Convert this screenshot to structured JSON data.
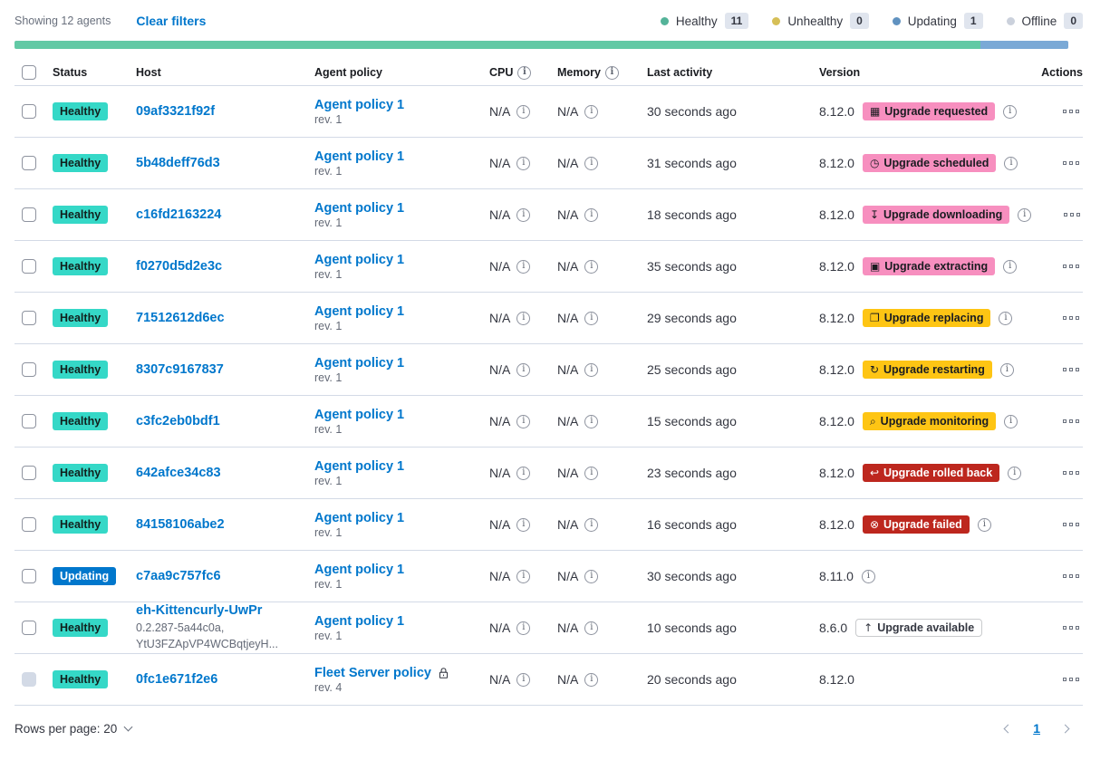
{
  "toolbar": {
    "showing_text": "Showing 12 agents",
    "clear_filters_label": "Clear filters",
    "legend": [
      {
        "label": "Healthy",
        "count": "11",
        "color": "#54B399"
      },
      {
        "label": "Unhealthy",
        "count": "0",
        "color": "#D6BF57"
      },
      {
        "label": "Updating",
        "count": "1",
        "color": "#6092C0"
      },
      {
        "label": "Offline",
        "count": "0",
        "color": "#CBD1DC"
      }
    ]
  },
  "status_bar": {
    "segments": [
      {
        "status": "healthy",
        "fraction": 0.9167,
        "color": "#62C9A5"
      },
      {
        "status": "updating",
        "fraction": 0.0833,
        "color": "#7AA9D6"
      }
    ]
  },
  "table": {
    "columns": [
      {
        "label": "Status"
      },
      {
        "label": "Host"
      },
      {
        "label": "Agent policy"
      },
      {
        "label": "CPU",
        "info": true
      },
      {
        "label": "Memory",
        "info": true
      },
      {
        "label": "Last activity"
      },
      {
        "label": "Version"
      },
      {
        "label": "Actions"
      }
    ]
  },
  "icons": {
    "calendar-icon": "▦",
    "clock-icon": "◷",
    "download-icon": "↧",
    "package-icon": "▣",
    "copy-icon": "❐",
    "refresh-icon": "↻",
    "inspect-icon": "⌕",
    "rollback-icon": "↩",
    "error-icon": "⊗",
    "arrow-up-icon": "↑"
  },
  "rows": [
    {
      "status": {
        "label": "Healthy",
        "variant": "success"
      },
      "host": {
        "name": "09af3321f92f"
      },
      "policy": {
        "name": "Agent policy 1",
        "rev": "rev. 1",
        "locked": false
      },
      "cpu": "N/A",
      "memory": "N/A",
      "last_activity": "30 seconds ago",
      "version": "8.12.0",
      "upgrade": {
        "label": "Upgrade requested",
        "icon": "calendar-icon",
        "variant": "accent"
      },
      "version_info": true,
      "checkbox_disabled": false
    },
    {
      "status": {
        "label": "Healthy",
        "variant": "success"
      },
      "host": {
        "name": "5b48deff76d3"
      },
      "policy": {
        "name": "Agent policy 1",
        "rev": "rev. 1",
        "locked": false
      },
      "cpu": "N/A",
      "memory": "N/A",
      "last_activity": "31 seconds ago",
      "version": "8.12.0",
      "upgrade": {
        "label": "Upgrade scheduled",
        "icon": "clock-icon",
        "variant": "accent"
      },
      "version_info": true,
      "checkbox_disabled": false
    },
    {
      "status": {
        "label": "Healthy",
        "variant": "success"
      },
      "host": {
        "name": "c16fd2163224"
      },
      "policy": {
        "name": "Agent policy 1",
        "rev": "rev. 1",
        "locked": false
      },
      "cpu": "N/A",
      "memory": "N/A",
      "last_activity": "18 seconds ago",
      "version": "8.12.0",
      "upgrade": {
        "label": "Upgrade downloading",
        "icon": "download-icon",
        "variant": "accent"
      },
      "version_info": true,
      "checkbox_disabled": false
    },
    {
      "status": {
        "label": "Healthy",
        "variant": "success"
      },
      "host": {
        "name": "f0270d5d2e3c"
      },
      "policy": {
        "name": "Agent policy 1",
        "rev": "rev. 1",
        "locked": false
      },
      "cpu": "N/A",
      "memory": "N/A",
      "last_activity": "35 seconds ago",
      "version": "8.12.0",
      "upgrade": {
        "label": "Upgrade extracting",
        "icon": "package-icon",
        "variant": "accent"
      },
      "version_info": true,
      "checkbox_disabled": false
    },
    {
      "status": {
        "label": "Healthy",
        "variant": "success"
      },
      "host": {
        "name": "71512612d6ec"
      },
      "policy": {
        "name": "Agent policy 1",
        "rev": "rev. 1",
        "locked": false
      },
      "cpu": "N/A",
      "memory": "N/A",
      "last_activity": "29 seconds ago",
      "version": "8.12.0",
      "upgrade": {
        "label": "Upgrade replacing",
        "icon": "copy-icon",
        "variant": "warning"
      },
      "version_info": true,
      "checkbox_disabled": false
    },
    {
      "status": {
        "label": "Healthy",
        "variant": "success"
      },
      "host": {
        "name": "8307c9167837"
      },
      "policy": {
        "name": "Agent policy 1",
        "rev": "rev. 1",
        "locked": false
      },
      "cpu": "N/A",
      "memory": "N/A",
      "last_activity": "25 seconds ago",
      "version": "8.12.0",
      "upgrade": {
        "label": "Upgrade restarting",
        "icon": "refresh-icon",
        "variant": "warning"
      },
      "version_info": true,
      "checkbox_disabled": false
    },
    {
      "status": {
        "label": "Healthy",
        "variant": "success"
      },
      "host": {
        "name": "c3fc2eb0bdf1"
      },
      "policy": {
        "name": "Agent policy 1",
        "rev": "rev. 1",
        "locked": false
      },
      "cpu": "N/A",
      "memory": "N/A",
      "last_activity": "15 seconds ago",
      "version": "8.12.0",
      "upgrade": {
        "label": "Upgrade monitoring",
        "icon": "inspect-icon",
        "variant": "warning"
      },
      "version_info": true,
      "checkbox_disabled": false
    },
    {
      "status": {
        "label": "Healthy",
        "variant": "success"
      },
      "host": {
        "name": "642afce34c83"
      },
      "policy": {
        "name": "Agent policy 1",
        "rev": "rev. 1",
        "locked": false
      },
      "cpu": "N/A",
      "memory": "N/A",
      "last_activity": "23 seconds ago",
      "version": "8.12.0",
      "upgrade": {
        "label": "Upgrade rolled back",
        "icon": "rollback-icon",
        "variant": "danger"
      },
      "version_info": true,
      "checkbox_disabled": false
    },
    {
      "status": {
        "label": "Healthy",
        "variant": "success"
      },
      "host": {
        "name": "84158106abe2"
      },
      "policy": {
        "name": "Agent policy 1",
        "rev": "rev. 1",
        "locked": false
      },
      "cpu": "N/A",
      "memory": "N/A",
      "last_activity": "16 seconds ago",
      "version": "8.12.0",
      "upgrade": {
        "label": "Upgrade failed",
        "icon": "error-icon",
        "variant": "danger"
      },
      "version_info": true,
      "checkbox_disabled": false
    },
    {
      "status": {
        "label": "Updating",
        "variant": "primary"
      },
      "host": {
        "name": "c7aa9c757fc6"
      },
      "policy": {
        "name": "Agent policy 1",
        "rev": "rev. 1",
        "locked": false
      },
      "cpu": "N/A",
      "memory": "N/A",
      "last_activity": "30 seconds ago",
      "version": "8.11.0",
      "upgrade": null,
      "version_info": true,
      "checkbox_disabled": false
    },
    {
      "status": {
        "label": "Healthy",
        "variant": "success"
      },
      "host": {
        "name": "eh-Kittencurly-UwPr",
        "subtext": [
          "0.2.287-5a44c0a,",
          "YtU3FZApVP4WCBqtjeyH..."
        ]
      },
      "policy": {
        "name": "Agent policy 1",
        "rev": "rev. 1",
        "locked": false
      },
      "cpu": "N/A",
      "memory": "N/A",
      "last_activity": "10 seconds ago",
      "version": "8.6.0",
      "upgrade": {
        "label": "Upgrade available",
        "icon": "arrow-up-icon",
        "variant": "hollow"
      },
      "version_info": false,
      "checkbox_disabled": false
    },
    {
      "status": {
        "label": "Healthy",
        "variant": "success"
      },
      "host": {
        "name": "0fc1e671f2e6"
      },
      "policy": {
        "name": "Fleet Server policy",
        "rev": "rev. 4",
        "locked": true
      },
      "cpu": "N/A",
      "memory": "N/A",
      "last_activity": "20 seconds ago",
      "version": "8.12.0",
      "upgrade": null,
      "version_info": false,
      "checkbox_disabled": true
    }
  ],
  "footer": {
    "rows_per_page_label": "Rows per page: 20",
    "page": "1"
  }
}
